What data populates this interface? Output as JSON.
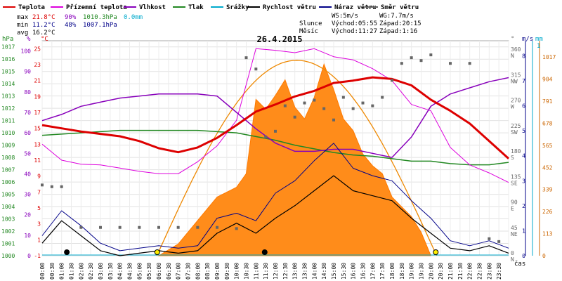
{
  "legend": [
    {
      "label": "Teplota",
      "color": "#dd0000"
    },
    {
      "label": "Přízemní teplota",
      "color": "#dd00dd"
    },
    {
      "label": "Vlhkost",
      "color": "#8800bb"
    },
    {
      "label": "Tlak",
      "color": "#228822"
    },
    {
      "label": "Srážky",
      "color": "#00aacc"
    },
    {
      "label": "Rychlost větru",
      "color": "#000000"
    },
    {
      "label": "Náraz větru",
      "color": "#000088"
    },
    {
      "label": "Směr větru",
      "color": "#666666"
    }
  ],
  "stats": {
    "max_label": "max",
    "max_temp": "21.8°C",
    "max_hum": "90%",
    "max_press": "1010.3hPa",
    "max_rain": "0.0mm",
    "min_label": "min",
    "min_temp": "11.2°C",
    "min_hum": "48%",
    "min_press": "1007.1hPa",
    "avg_label": "avg",
    "avg_temp": "16.2°C"
  },
  "wind": {
    "ws": "WS:5m/s",
    "wg": "WG:7.7m/s"
  },
  "sun": {
    "label": "Slunce",
    "rise": "Východ:05:55",
    "set": "Západ:20:15"
  },
  "moon": {
    "label": "Měsíc",
    "rise": "Východ:11:27",
    "set": "Západ:1:16"
  },
  "chart_data": {
    "type": "line",
    "title": "26.4.2015",
    "xlabel": "čas",
    "x_ticks": [
      "00:00",
      "00:30",
      "01:00",
      "01:30",
      "02:00",
      "02:30",
      "03:00",
      "03:30",
      "04:00",
      "04:30",
      "05:00",
      "05:30",
      "06:00",
      "06:30",
      "07:00",
      "07:30",
      "08:00",
      "08:30",
      "09:00",
      "09:30",
      "10:00",
      "10:30",
      "11:00",
      "11:30",
      "12:00",
      "12:30",
      "13:00",
      "13:30",
      "14:00",
      "14:30",
      "15:00",
      "15:30",
      "16:00",
      "16:30",
      "17:00",
      "17:30",
      "18:00",
      "18:30",
      "19:00",
      "19:30",
      "20:00",
      "20:30",
      "21:00",
      "21:30",
      "22:00",
      "22:30",
      "23:00",
      "23:30"
    ],
    "axes": {
      "hpa": {
        "title": "hPa",
        "ticks": [
          "1000",
          "1001",
          "1002",
          "1003",
          "1004",
          "1005",
          "1006",
          "1007",
          "1008",
          "1009",
          "1010",
          "1011",
          "1012",
          "1013",
          "1014",
          "1015",
          "1016",
          "1017"
        ]
      },
      "pct": {
        "title": "%",
        "ticks": [
          "0",
          "10",
          "20",
          "30",
          "40",
          "50",
          "60",
          "70",
          "80",
          "90",
          "100"
        ]
      },
      "temp": {
        "title": "°C",
        "ticks": [
          "-1",
          "1",
          "3",
          "5",
          "7",
          "9",
          "11",
          "13",
          "15",
          "17",
          "19",
          "21",
          "23",
          "25"
        ]
      },
      "dir": {
        "title": "°",
        "ticks": [
          "0 N",
          "45 NE",
          "90 E",
          "135 SE",
          "180 S",
          "225 SW",
          "270 W",
          "315 NW",
          "360 N"
        ]
      },
      "ms": {
        "title": "m/s",
        "ticks": [
          "0",
          "1",
          "2",
          "3",
          "4",
          "5",
          "6",
          "7",
          "8"
        ]
      },
      "mm": {
        "title": "mm",
        "top": "1"
      },
      "solar": {
        "ticks": [
          "0",
          "113",
          "226",
          "339",
          "452",
          "565",
          "678",
          "791",
          "904",
          "1017"
        ]
      }
    },
    "series": [
      {
        "name": "Teplota",
        "unit": "°C",
        "x": [
          0,
          1,
          2,
          3,
          4,
          5,
          6,
          7,
          8,
          9,
          10,
          11,
          12,
          13,
          14,
          15,
          16,
          17,
          18,
          19,
          20,
          21,
          22,
          23,
          24
        ],
        "values": [
          15.4,
          15.0,
          14.6,
          14.3,
          14.0,
          13.4,
          12.5,
          12.0,
          12.6,
          13.8,
          15.4,
          17.1,
          18.0,
          19.0,
          19.7,
          20.7,
          21.0,
          21.4,
          21.2,
          20.4,
          18.6,
          17.2,
          15.6,
          13.4,
          11.2
        ]
      },
      {
        "name": "Přízemní teplota",
        "unit": "°C",
        "x": [
          0,
          1,
          2,
          3,
          4,
          5,
          6,
          7,
          8,
          9,
          10,
          11,
          12,
          13,
          14,
          15,
          16,
          17,
          18,
          19,
          20,
          21,
          22,
          23,
          24
        ],
        "values": [
          13.0,
          11.0,
          10.5,
          10.4,
          10.0,
          9.6,
          9.3,
          9.3,
          10.8,
          12.8,
          16.0,
          25.0,
          24.8,
          24.5,
          25.0,
          24.0,
          23.6,
          22.5,
          21.0,
          18.0,
          17.2,
          12.6,
          10.4,
          9.4,
          8.2
        ]
      },
      {
        "name": "Vlhkost",
        "unit": "%",
        "x": [
          0,
          1,
          2,
          3,
          4,
          5,
          6,
          7,
          8,
          9,
          10,
          11,
          12,
          13,
          14,
          15,
          16,
          17,
          18,
          19,
          20,
          21,
          22,
          23,
          24
        ],
        "values": [
          66,
          69,
          73,
          75,
          77,
          78,
          79,
          79,
          79,
          78,
          70,
          62,
          55,
          51,
          51,
          52,
          52,
          50,
          48,
          58,
          73,
          79,
          82,
          85,
          87
        ]
      },
      {
        "name": "Tlak",
        "unit": "hPa",
        "x": [
          0,
          1,
          2,
          3,
          4,
          5,
          6,
          7,
          8,
          9,
          10,
          11,
          12,
          13,
          14,
          15,
          16,
          17,
          18,
          19,
          20,
          21,
          22,
          23,
          24
        ],
        "values": [
          1009.8,
          1009.9,
          1010.0,
          1010.1,
          1010.2,
          1010.2,
          1010.2,
          1010.2,
          1010.2,
          1010.1,
          1010.0,
          1009.7,
          1009.4,
          1009.0,
          1008.7,
          1008.4,
          1008.2,
          1008.1,
          1007.9,
          1007.7,
          1007.7,
          1007.5,
          1007.4,
          1007.4,
          1007.6
        ]
      },
      {
        "name": "Srážky",
        "unit": "mm",
        "x": [
          0,
          24
        ],
        "values": [
          0,
          0
        ]
      },
      {
        "name": "Rychlost větru",
        "unit": "m/s",
        "x": [
          0,
          1,
          2,
          3,
          4,
          5,
          6,
          7,
          8,
          9,
          10,
          11,
          12,
          13,
          14,
          15,
          16,
          17,
          18,
          19,
          20,
          21,
          22,
          23,
          24
        ],
        "values": [
          0.5,
          1.4,
          0.8,
          0.2,
          0.0,
          0.1,
          0.2,
          0.1,
          0.2,
          0.9,
          1.3,
          0.9,
          1.5,
          2.0,
          2.6,
          3.2,
          2.6,
          2.4,
          2.2,
          1.5,
          0.9,
          0.3,
          0.2,
          0.4,
          0.1
        ]
      },
      {
        "name": "Náraz větru",
        "unit": "m/s",
        "x": [
          0,
          1,
          2,
          3,
          4,
          5,
          6,
          7,
          8,
          9,
          10,
          11,
          12,
          13,
          14,
          15,
          16,
          17,
          18,
          19,
          20,
          21,
          22,
          23,
          24
        ],
        "values": [
          0.8,
          1.8,
          1.2,
          0.5,
          0.2,
          0.3,
          0.4,
          0.3,
          0.4,
          1.5,
          1.7,
          1.4,
          2.5,
          3.0,
          3.8,
          4.5,
          3.5,
          3.2,
          3.0,
          2.2,
          1.5,
          0.6,
          0.4,
          0.6,
          0.3
        ]
      },
      {
        "name": "Směr větru",
        "unit": "°",
        "x": [
          0,
          0.5,
          1,
          2,
          3,
          4,
          5,
          6,
          7,
          8,
          9,
          10,
          10.5,
          11,
          11.5,
          12,
          12.5,
          13,
          13.5,
          14,
          14.5,
          15,
          15.5,
          16,
          16.5,
          17,
          17.5,
          18,
          18.5,
          19,
          19.5,
          20,
          21,
          22,
          23,
          23.5
        ],
        "values": [
          125,
          122,
          122,
          50,
          50,
          50,
          50,
          50,
          50,
          50,
          50,
          48,
          350,
          330,
          210,
          220,
          265,
          245,
          270,
          275,
          260,
          240,
          280,
          260,
          270,
          265,
          280,
          310,
          340,
          350,
          345,
          355,
          340,
          340,
          30,
          25
        ]
      },
      {
        "name": "Solar",
        "unit": "W/m²",
        "x": [
          6,
          7,
          8,
          9,
          10,
          10.5,
          11,
          11.5,
          12,
          12.5,
          13,
          13.5,
          14,
          14.5,
          15,
          15.5,
          16,
          16.5,
          17,
          17.5,
          18,
          18.5,
          19,
          19.5,
          20
        ],
        "values": [
          0,
          60,
          180,
          300,
          350,
          420,
          800,
          750,
          820,
          900,
          760,
          700,
          810,
          980,
          850,
          700,
          640,
          520,
          460,
          420,
          300,
          250,
          200,
          120,
          0
        ]
      }
    ]
  }
}
